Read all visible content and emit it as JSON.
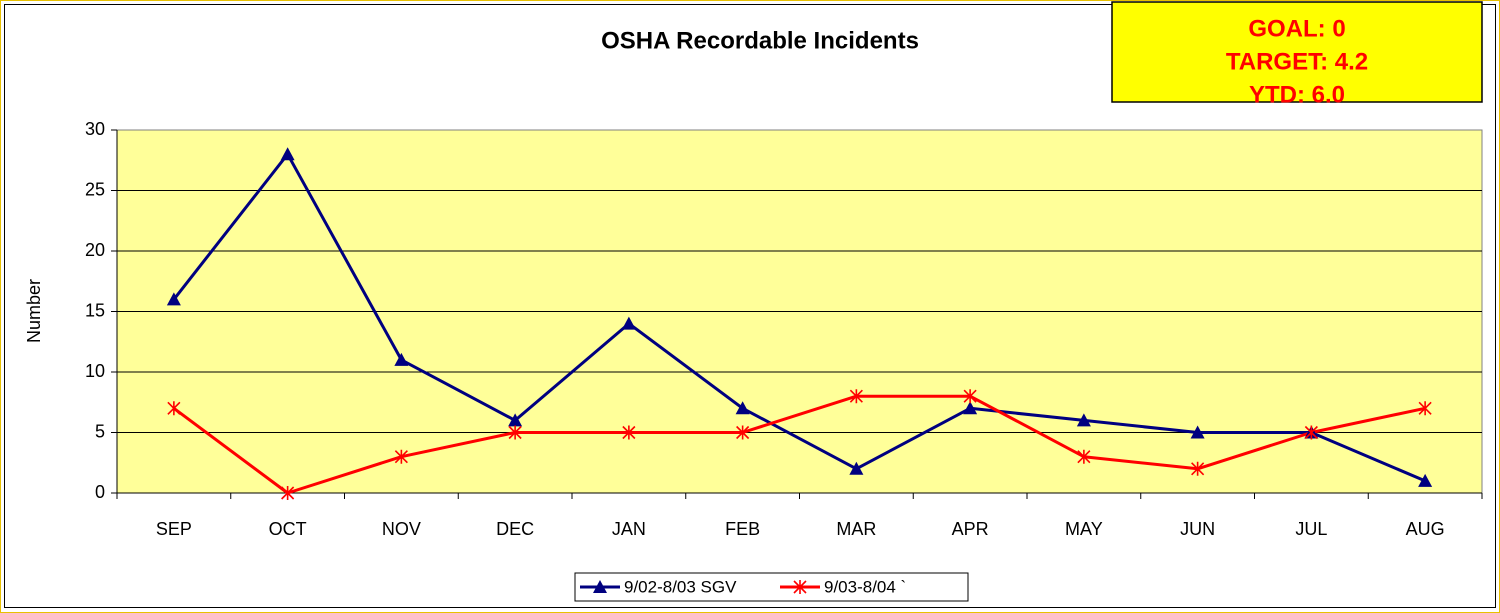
{
  "chart_data": {
    "type": "line",
    "title": "OSHA Recordable Incidents",
    "y_label": "Number",
    "annotations": [
      "GOAL: 0",
      "TARGET: 4.2",
      "YTD: 6.0"
    ],
    "categories": [
      "SEP",
      "OCT",
      "NOV",
      "DEC",
      "JAN",
      "FEB",
      "MAR",
      "APR",
      "MAY",
      "JUN",
      "JUL",
      "AUG"
    ],
    "series": [
      {
        "name": "9/02-8/03 SGV",
        "color": "#000080",
        "marker": "triangle",
        "values": [
          16,
          28,
          11,
          6,
          14,
          7,
          2,
          7,
          6,
          5,
          5,
          1
        ]
      },
      {
        "name": "9/03-8/04 `",
        "color": "#ff0000",
        "marker": "asterisk",
        "values": [
          7,
          0,
          3,
          5,
          5,
          5,
          8,
          8,
          3,
          2,
          5,
          7
        ]
      }
    ],
    "ylim": [
      0,
      30
    ],
    "yticks": [
      0,
      5,
      10,
      15,
      20,
      25,
      30
    ],
    "grid": true,
    "legend": "bottom"
  }
}
